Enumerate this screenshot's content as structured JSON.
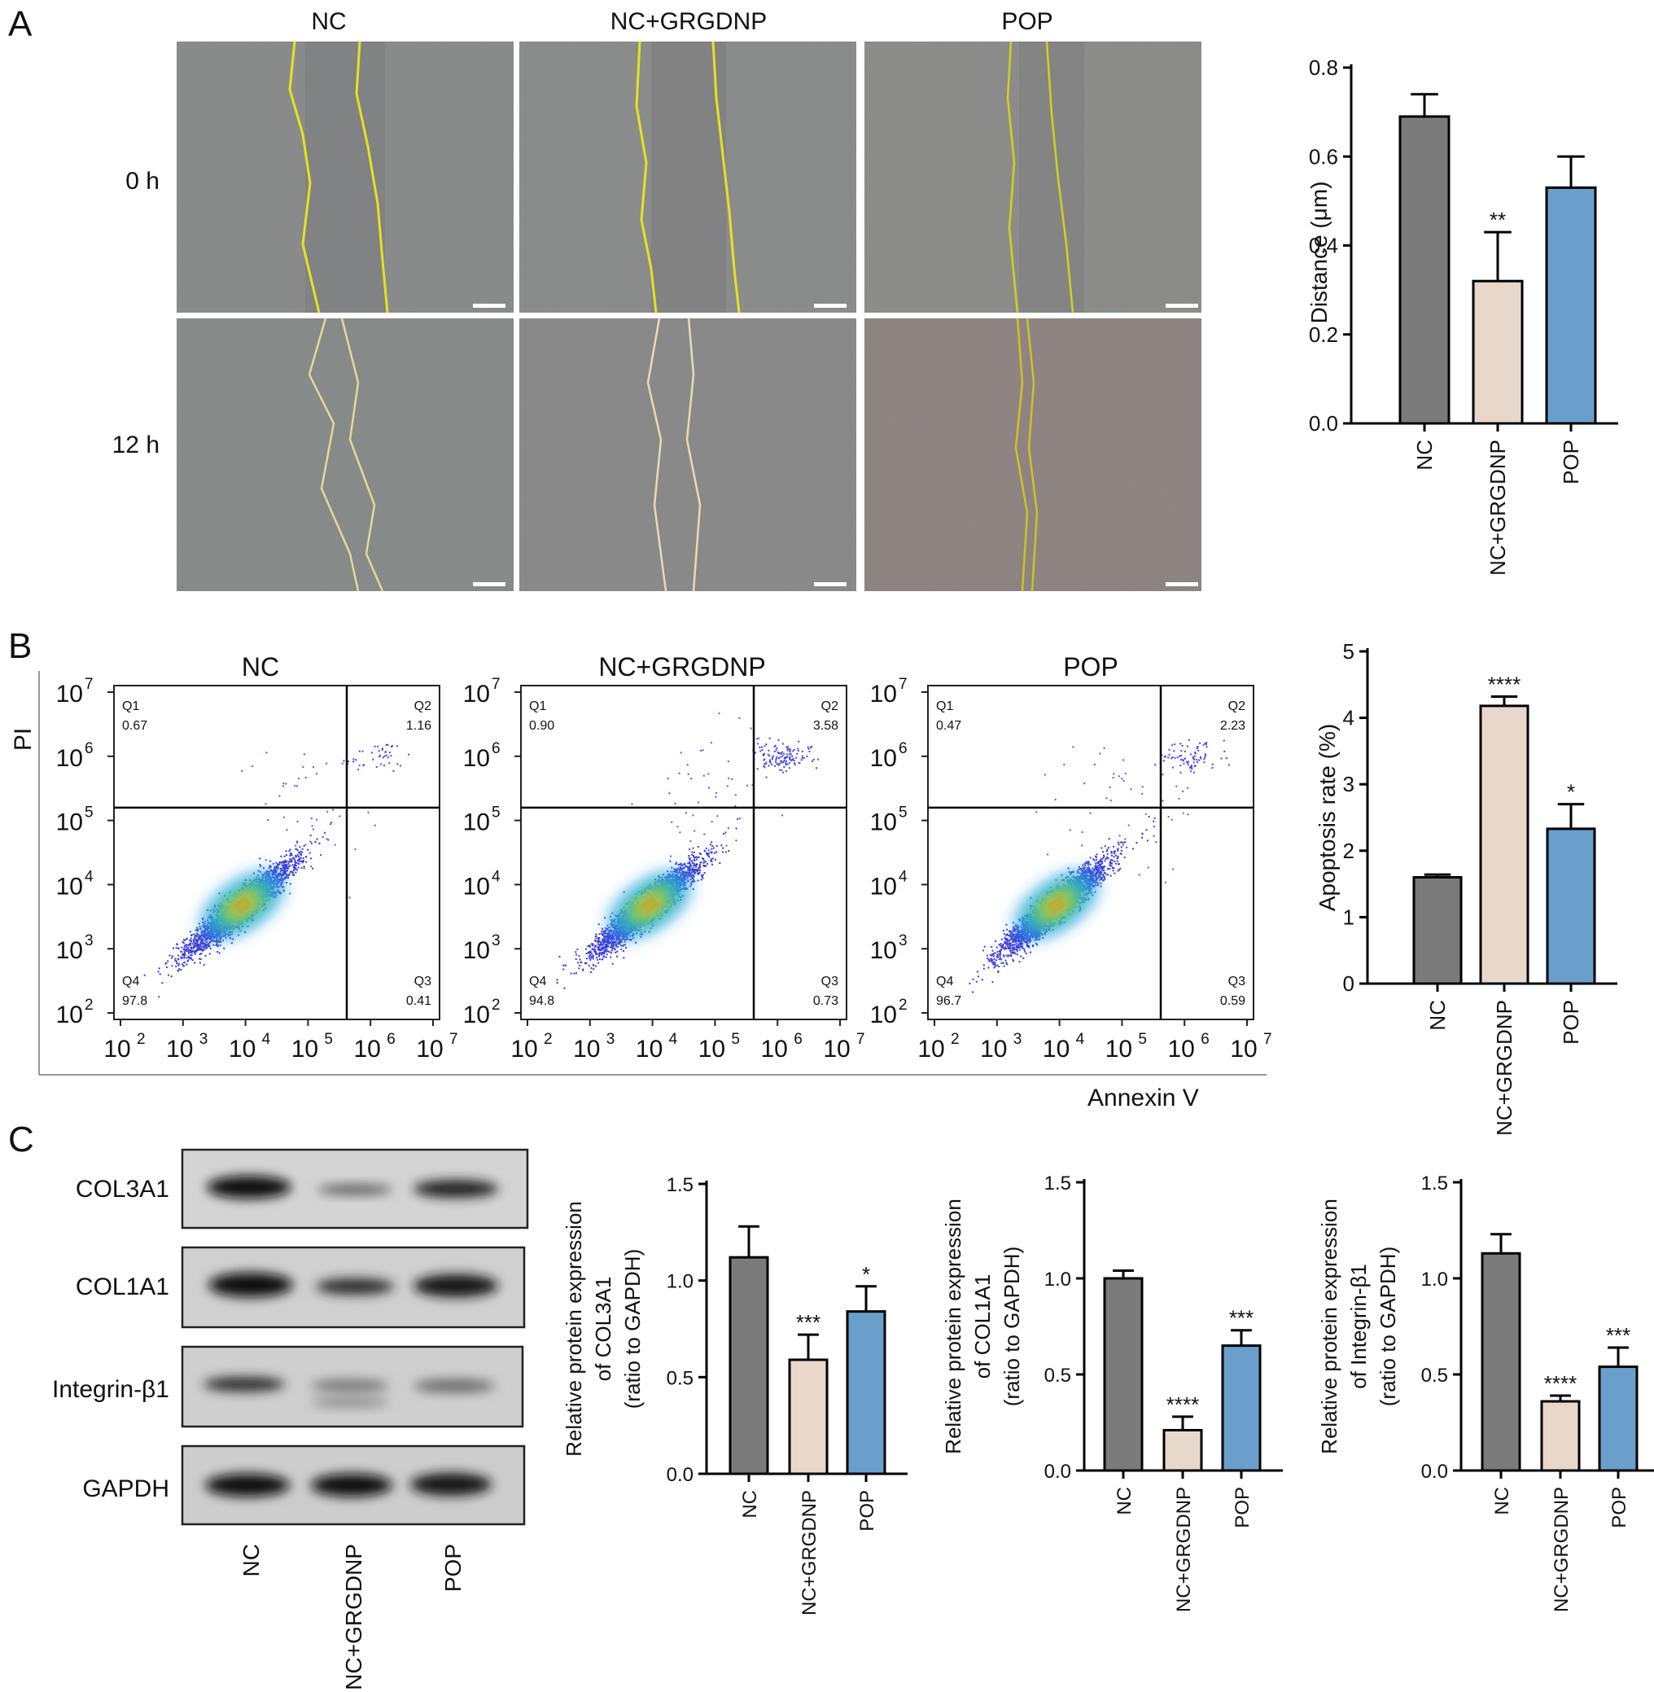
{
  "panels": {
    "a": "A",
    "b": "B",
    "c": "C"
  },
  "scratch": {
    "columns": [
      "NC",
      "NC+GRGDNP",
      "POP"
    ],
    "rows": [
      "0 h",
      "12 h"
    ]
  },
  "flow": {
    "titles": [
      "NC",
      "NC+GRGDNP",
      "POP"
    ],
    "ylabel": "PI",
    "xlabel": "Annexin V",
    "ticks": [
      "10",
      "10",
      "10",
      "10",
      "10",
      "10"
    ],
    "tick_exp": [
      "2",
      "3",
      "4",
      "5",
      "6",
      "7"
    ],
    "quadrant_names": [
      "Q1",
      "Q2",
      "Q3",
      "Q4"
    ],
    "plots": [
      {
        "Q1": "0.67",
        "Q2": "1.16",
        "Q3": "0.41",
        "Q4": "97.8"
      },
      {
        "Q1": "0.90",
        "Q2": "3.58",
        "Q3": "0.73",
        "Q4": "94.8"
      },
      {
        "Q1": "0.47",
        "Q2": "2.23",
        "Q3": "0.59",
        "Q4": "96.7"
      }
    ]
  },
  "western": {
    "proteins": [
      "COL3A1",
      "COL1A1",
      "Integrin-β1",
      "GAPDH"
    ],
    "lanes": [
      "NC",
      "NC+GRGDNP",
      "POP"
    ]
  },
  "colors": {
    "nc": "#7b7b7b",
    "grgdnp": "#e8d8cc",
    "pop": "#6a9fcb",
    "gate": "#000000"
  },
  "chart_data": [
    {
      "type": "bar",
      "categories": [
        "NC",
        "NC+GRGDNP",
        "POP"
      ],
      "values": [
        0.69,
        0.32,
        0.53
      ],
      "errors": [
        0.05,
        0.11,
        0.07
      ],
      "sig": [
        "",
        "**",
        ""
      ],
      "ylabel": "Distance (μm)",
      "ylim": [
        0,
        0.8
      ],
      "yticks": [
        "0.0",
        "0.2",
        "0.4",
        "0.6",
        "0.8"
      ]
    },
    {
      "type": "bar",
      "categories": [
        "NC",
        "NC+GRGDNP",
        "POP"
      ],
      "values": [
        1.6,
        4.18,
        2.33
      ],
      "errors": [
        0.04,
        0.14,
        0.37
      ],
      "sig": [
        "",
        "****",
        "*"
      ],
      "ylabel": "Apoptosis rate (%)",
      "ylim": [
        0,
        5
      ],
      "yticks": [
        "0",
        "1",
        "2",
        "3",
        "4",
        "5"
      ]
    },
    {
      "type": "bar",
      "categories": [
        "NC",
        "NC+GRGDNP",
        "POP"
      ],
      "values": [
        1.12,
        0.59,
        0.84
      ],
      "errors": [
        0.16,
        0.13,
        0.13
      ],
      "sig": [
        "",
        "***",
        "*"
      ],
      "ylabel": [
        "Relative protein expression",
        "of COL3A1",
        "(ratio to GAPDH)"
      ],
      "ylim": [
        0,
        1.5
      ],
      "yticks": [
        "0.0",
        "0.5",
        "1.0",
        "1.5"
      ]
    },
    {
      "type": "bar",
      "categories": [
        "NC",
        "NC+GRGDNP",
        "POP"
      ],
      "values": [
        1.0,
        0.21,
        0.65
      ],
      "errors": [
        0.04,
        0.07,
        0.08
      ],
      "sig": [
        "",
        "****",
        "***"
      ],
      "ylabel": [
        "Relative protein expression",
        "of COL1A1",
        "(ratio to GAPDH)"
      ],
      "ylim": [
        0,
        1.5
      ],
      "yticks": [
        "0.0",
        "0.5",
        "1.0",
        "1.5"
      ]
    },
    {
      "type": "bar",
      "categories": [
        "NC",
        "NC+GRGDNP",
        "POP"
      ],
      "values": [
        1.13,
        0.36,
        0.54
      ],
      "errors": [
        0.1,
        0.03,
        0.1
      ],
      "sig": [
        "",
        "****",
        "***"
      ],
      "ylabel": [
        "Relative protein expression",
        "of Integrin-β1",
        "(ratio to GAPDH)"
      ],
      "ylim": [
        0,
        1.5
      ],
      "yticks": [
        "0.0",
        "0.5",
        "1.0",
        "1.5"
      ]
    }
  ]
}
